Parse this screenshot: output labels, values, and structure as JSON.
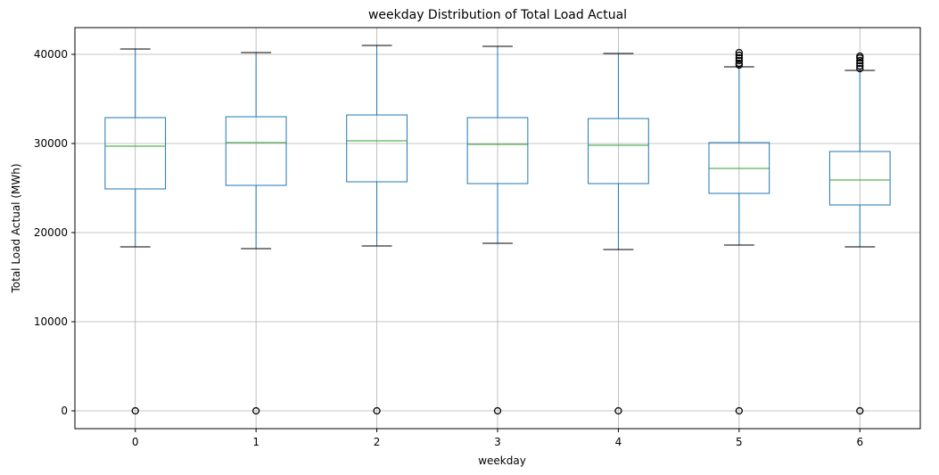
{
  "chart_data": {
    "type": "box",
    "title": "weekday Distribution of Total Load Actual",
    "xlabel": "weekday",
    "ylabel": "Total Load Actual (MWh)",
    "categories": [
      "0",
      "1",
      "2",
      "3",
      "4",
      "5",
      "6"
    ],
    "ylim": [
      -2000,
      43000
    ],
    "yticks": [
      0,
      10000,
      20000,
      30000,
      40000
    ],
    "grid": true,
    "colors": {
      "box": "#1f77b4",
      "median": "#2ca02c",
      "cap": "#000000",
      "grid": "#b0b0b0",
      "outlier": "#000000"
    },
    "boxes": [
      {
        "label": "0",
        "whisker_low": 18400,
        "q1": 24900,
        "median": 29700,
        "q3": 32900,
        "whisker_high": 40600,
        "outliers": [
          0
        ]
      },
      {
        "label": "1",
        "whisker_low": 18200,
        "q1": 25300,
        "median": 30100,
        "q3": 33000,
        "whisker_high": 40200,
        "outliers": [
          0
        ]
      },
      {
        "label": "2",
        "whisker_low": 18500,
        "q1": 25700,
        "median": 30300,
        "q3": 33200,
        "whisker_high": 41000,
        "outliers": [
          0
        ]
      },
      {
        "label": "3",
        "whisker_low": 18800,
        "q1": 25500,
        "median": 29900,
        "q3": 32900,
        "whisker_high": 40900,
        "outliers": [
          0
        ]
      },
      {
        "label": "4",
        "whisker_low": 18100,
        "q1": 25500,
        "median": 29800,
        "q3": 32800,
        "whisker_high": 40100,
        "outliers": [
          0
        ]
      },
      {
        "label": "5",
        "whisker_low": 18600,
        "q1": 24400,
        "median": 27200,
        "q3": 30100,
        "whisker_high": 38600,
        "outliers": [
          0,
          38800,
          39000,
          39300,
          39600,
          39900,
          40200
        ]
      },
      {
        "label": "6",
        "whisker_low": 18400,
        "q1": 23100,
        "median": 25900,
        "q3": 29100,
        "whisker_high": 38200,
        "outliers": [
          0,
          38400,
          38700,
          39000,
          39300,
          39600,
          39800
        ]
      }
    ]
  }
}
